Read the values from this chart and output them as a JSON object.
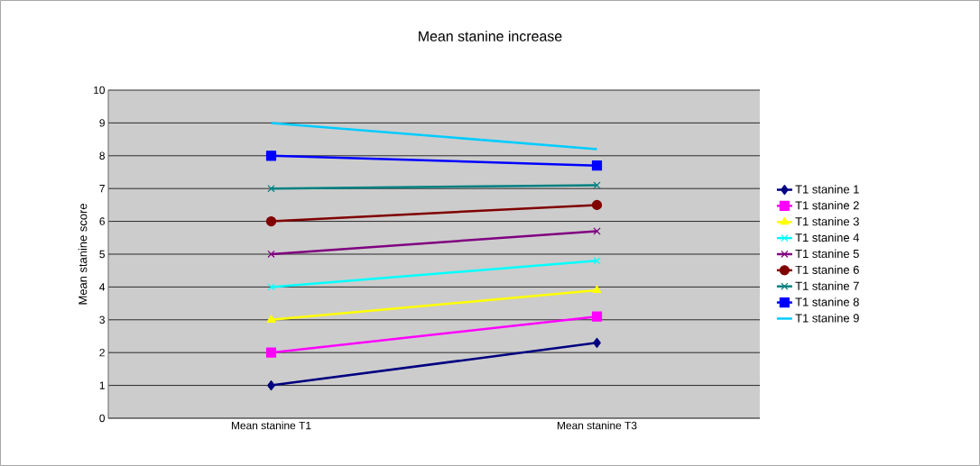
{
  "chart_data": {
    "type": "line",
    "title": "Mean stanine increase",
    "ylabel": "Mean stanine score",
    "categories": [
      "Mean stanine T1",
      "Mean stanine T3"
    ],
    "ylim": [
      0,
      10
    ],
    "yticks": [
      0,
      1,
      2,
      3,
      4,
      5,
      6,
      7,
      8,
      9,
      10
    ],
    "grid": "y",
    "legend": "right",
    "series": [
      {
        "name": "T1 stanine 1",
        "color": "#000080",
        "marker": "diamond",
        "values": [
          1,
          2.3
        ]
      },
      {
        "name": "T1 stanine 2",
        "color": "#ff00ff",
        "marker": "square",
        "values": [
          2,
          3.1
        ]
      },
      {
        "name": "T1 stanine 3",
        "color": "#ffff00",
        "marker": "triangle",
        "values": [
          3,
          3.9
        ]
      },
      {
        "name": "T1 stanine 4",
        "color": "#00ffff",
        "marker": "cross",
        "values": [
          4,
          4.8
        ]
      },
      {
        "name": "T1 stanine 5",
        "color": "#800080",
        "marker": "cross",
        "values": [
          5,
          5.7
        ]
      },
      {
        "name": "T1 stanine 6",
        "color": "#800000",
        "marker": "circle",
        "values": [
          6,
          6.5
        ]
      },
      {
        "name": "T1 stanine 7",
        "color": "#008080",
        "marker": "cross",
        "values": [
          7,
          7.1
        ]
      },
      {
        "name": "T1 stanine 8",
        "color": "#0000ff",
        "marker": "square",
        "values": [
          8,
          7.7
        ]
      },
      {
        "name": "T1 stanine 9",
        "color": "#00ccff",
        "marker": "none",
        "values": [
          9,
          8.2
        ]
      }
    ]
  }
}
